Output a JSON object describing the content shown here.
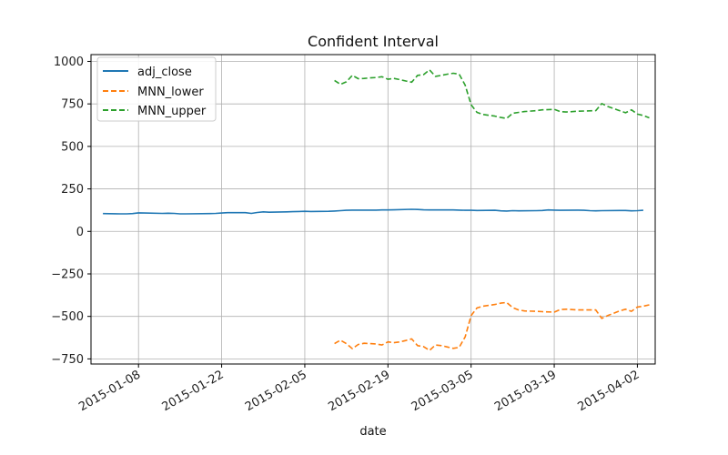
{
  "chart_data": {
    "type": "line",
    "title": "Confident Interval",
    "xlabel": "date",
    "ylabel": "",
    "ylim": [
      -780,
      1040
    ],
    "xlim": [
      "2014-12-31",
      "2015-04-05"
    ],
    "grid": true,
    "legend": "top-left",
    "y_ticks": [
      1000,
      750,
      500,
      250,
      0,
      -250,
      -500,
      -750
    ],
    "y_tick_labels": [
      "1000",
      "750",
      "500",
      "250",
      "0",
      "−250",
      "−500",
      "−750"
    ],
    "x_ticks": [
      "2015-01-08",
      "2015-01-22",
      "2015-02-05",
      "2015-02-19",
      "2015-03-05",
      "2015-03-19",
      "2015-04-02"
    ],
    "series": [
      {
        "name": "adj_close",
        "color": "#1f77b4",
        "style": "solid",
        "points": [
          [
            "2015-01-02",
            105
          ],
          [
            "2015-01-05",
            103
          ],
          [
            "2015-01-06",
            103
          ],
          [
            "2015-01-07",
            105
          ],
          [
            "2015-01-08",
            109
          ],
          [
            "2015-01-09",
            108
          ],
          [
            "2015-01-12",
            106
          ],
          [
            "2015-01-13",
            107
          ],
          [
            "2015-01-14",
            106
          ],
          [
            "2015-01-15",
            103
          ],
          [
            "2015-01-16",
            103
          ],
          [
            "2015-01-20",
            105
          ],
          [
            "2015-01-21",
            106
          ],
          [
            "2015-01-22",
            108
          ],
          [
            "2015-01-23",
            110
          ],
          [
            "2015-01-26",
            110
          ],
          [
            "2015-01-27",
            106
          ],
          [
            "2015-01-28",
            111
          ],
          [
            "2015-01-29",
            115
          ],
          [
            "2015-01-30",
            113
          ],
          [
            "2015-02-02",
            115
          ],
          [
            "2015-02-03",
            116
          ],
          [
            "2015-02-04",
            117
          ],
          [
            "2015-02-05",
            118
          ],
          [
            "2015-02-06",
            117
          ],
          [
            "2015-02-09",
            118
          ],
          [
            "2015-02-10",
            120
          ],
          [
            "2015-02-11",
            122
          ],
          [
            "2015-02-12",
            124
          ],
          [
            "2015-02-13",
            125
          ],
          [
            "2015-02-17",
            125
          ],
          [
            "2015-02-18",
            126
          ],
          [
            "2015-02-19",
            126
          ],
          [
            "2015-02-20",
            127
          ],
          [
            "2015-02-23",
            130
          ],
          [
            "2015-02-24",
            129
          ],
          [
            "2015-02-25",
            127
          ],
          [
            "2015-02-26",
            126
          ],
          [
            "2015-02-27",
            126
          ],
          [
            "2015-03-02",
            126
          ],
          [
            "2015-03-03",
            125
          ],
          [
            "2015-03-04",
            124
          ],
          [
            "2015-03-05",
            124
          ],
          [
            "2015-03-06",
            123
          ],
          [
            "2015-03-09",
            124
          ],
          [
            "2015-03-10",
            121
          ],
          [
            "2015-03-11",
            120
          ],
          [
            "2015-03-12",
            122
          ],
          [
            "2015-03-13",
            121
          ],
          [
            "2015-03-16",
            122
          ],
          [
            "2015-03-17",
            123
          ],
          [
            "2015-03-18",
            126
          ],
          [
            "2015-03-19",
            125
          ],
          [
            "2015-03-20",
            124
          ],
          [
            "2015-03-23",
            125
          ],
          [
            "2015-03-24",
            124
          ],
          [
            "2015-03-25",
            122
          ],
          [
            "2015-03-26",
            121
          ],
          [
            "2015-03-27",
            122
          ],
          [
            "2015-03-30",
            123
          ],
          [
            "2015-03-31",
            123
          ],
          [
            "2015-04-01",
            121
          ],
          [
            "2015-04-02",
            122
          ],
          [
            "2015-04-03",
            124
          ]
        ]
      },
      {
        "name": "MNN_lower",
        "color": "#ff7f0e",
        "style": "dashed",
        "points": [
          [
            "2015-02-10",
            -660
          ],
          [
            "2015-02-11",
            -640
          ],
          [
            "2015-02-12",
            -660
          ],
          [
            "2015-02-13",
            -690
          ],
          [
            "2015-02-14",
            -665
          ],
          [
            "2015-02-15",
            -658
          ],
          [
            "2015-02-16",
            -660
          ],
          [
            "2015-02-17",
            -662
          ],
          [
            "2015-02-18",
            -668
          ],
          [
            "2015-02-19",
            -650
          ],
          [
            "2015-02-20",
            -655
          ],
          [
            "2015-02-21",
            -650
          ],
          [
            "2015-02-22",
            -642
          ],
          [
            "2015-02-23",
            -632
          ],
          [
            "2015-02-24",
            -672
          ],
          [
            "2015-02-25",
            -678
          ],
          [
            "2015-02-26",
            -700
          ],
          [
            "2015-02-27",
            -668
          ],
          [
            "2015-02-28",
            -672
          ],
          [
            "2015-03-01",
            -680
          ],
          [
            "2015-03-02",
            -688
          ],
          [
            "2015-03-03",
            -682
          ],
          [
            "2015-03-04",
            -620
          ],
          [
            "2015-03-05",
            -495
          ],
          [
            "2015-03-06",
            -450
          ],
          [
            "2015-03-07",
            -440
          ],
          [
            "2015-03-09",
            -430
          ],
          [
            "2015-03-10",
            -422
          ],
          [
            "2015-03-11",
            -418
          ],
          [
            "2015-03-12",
            -448
          ],
          [
            "2015-03-13",
            -462
          ],
          [
            "2015-03-14",
            -468
          ],
          [
            "2015-03-16",
            -470
          ],
          [
            "2015-03-17",
            -472
          ],
          [
            "2015-03-19",
            -475
          ],
          [
            "2015-03-20",
            -460
          ],
          [
            "2015-03-21",
            -458
          ],
          [
            "2015-03-23",
            -462
          ],
          [
            "2015-03-26",
            -462
          ],
          [
            "2015-03-27",
            -512
          ],
          [
            "2015-03-28",
            -495
          ],
          [
            "2015-03-30",
            -468
          ],
          [
            "2015-03-31",
            -458
          ],
          [
            "2015-04-01",
            -470
          ],
          [
            "2015-04-02",
            -445
          ],
          [
            "2015-04-03",
            -440
          ],
          [
            "2015-04-04",
            -432
          ]
        ]
      },
      {
        "name": "MNN_upper",
        "color": "#2ca02c",
        "style": "dashed",
        "points": [
          [
            "2015-02-10",
            888
          ],
          [
            "2015-02-11",
            865
          ],
          [
            "2015-02-12",
            880
          ],
          [
            "2015-02-13",
            918
          ],
          [
            "2015-02-14",
            898
          ],
          [
            "2015-02-15",
            900
          ],
          [
            "2015-02-16",
            903
          ],
          [
            "2015-02-17",
            905
          ],
          [
            "2015-02-18",
            910
          ],
          [
            "2015-02-19",
            895
          ],
          [
            "2015-02-20",
            900
          ],
          [
            "2015-02-21",
            893
          ],
          [
            "2015-02-22",
            885
          ],
          [
            "2015-02-23",
            878
          ],
          [
            "2015-02-24",
            918
          ],
          [
            "2015-02-25",
            922
          ],
          [
            "2015-02-26",
            950
          ],
          [
            "2015-02-27",
            912
          ],
          [
            "2015-02-28",
            918
          ],
          [
            "2015-03-01",
            925
          ],
          [
            "2015-03-02",
            930
          ],
          [
            "2015-03-03",
            925
          ],
          [
            "2015-03-04",
            860
          ],
          [
            "2015-03-05",
            745
          ],
          [
            "2015-03-06",
            700
          ],
          [
            "2015-03-07",
            688
          ],
          [
            "2015-03-09",
            678
          ],
          [
            "2015-03-10",
            670
          ],
          [
            "2015-03-11",
            665
          ],
          [
            "2015-03-12",
            695
          ],
          [
            "2015-03-13",
            700
          ],
          [
            "2015-03-14",
            705
          ],
          [
            "2015-03-16",
            710
          ],
          [
            "2015-03-17",
            715
          ],
          [
            "2015-03-19",
            718
          ],
          [
            "2015-03-20",
            705
          ],
          [
            "2015-03-21",
            702
          ],
          [
            "2015-03-23",
            707
          ],
          [
            "2015-03-26",
            710
          ],
          [
            "2015-03-27",
            752
          ],
          [
            "2015-03-28",
            735
          ],
          [
            "2015-03-30",
            710
          ],
          [
            "2015-03-31",
            698
          ],
          [
            "2015-04-01",
            715
          ],
          [
            "2015-04-02",
            690
          ],
          [
            "2015-04-03",
            682
          ],
          [
            "2015-04-04",
            668
          ]
        ]
      }
    ]
  }
}
